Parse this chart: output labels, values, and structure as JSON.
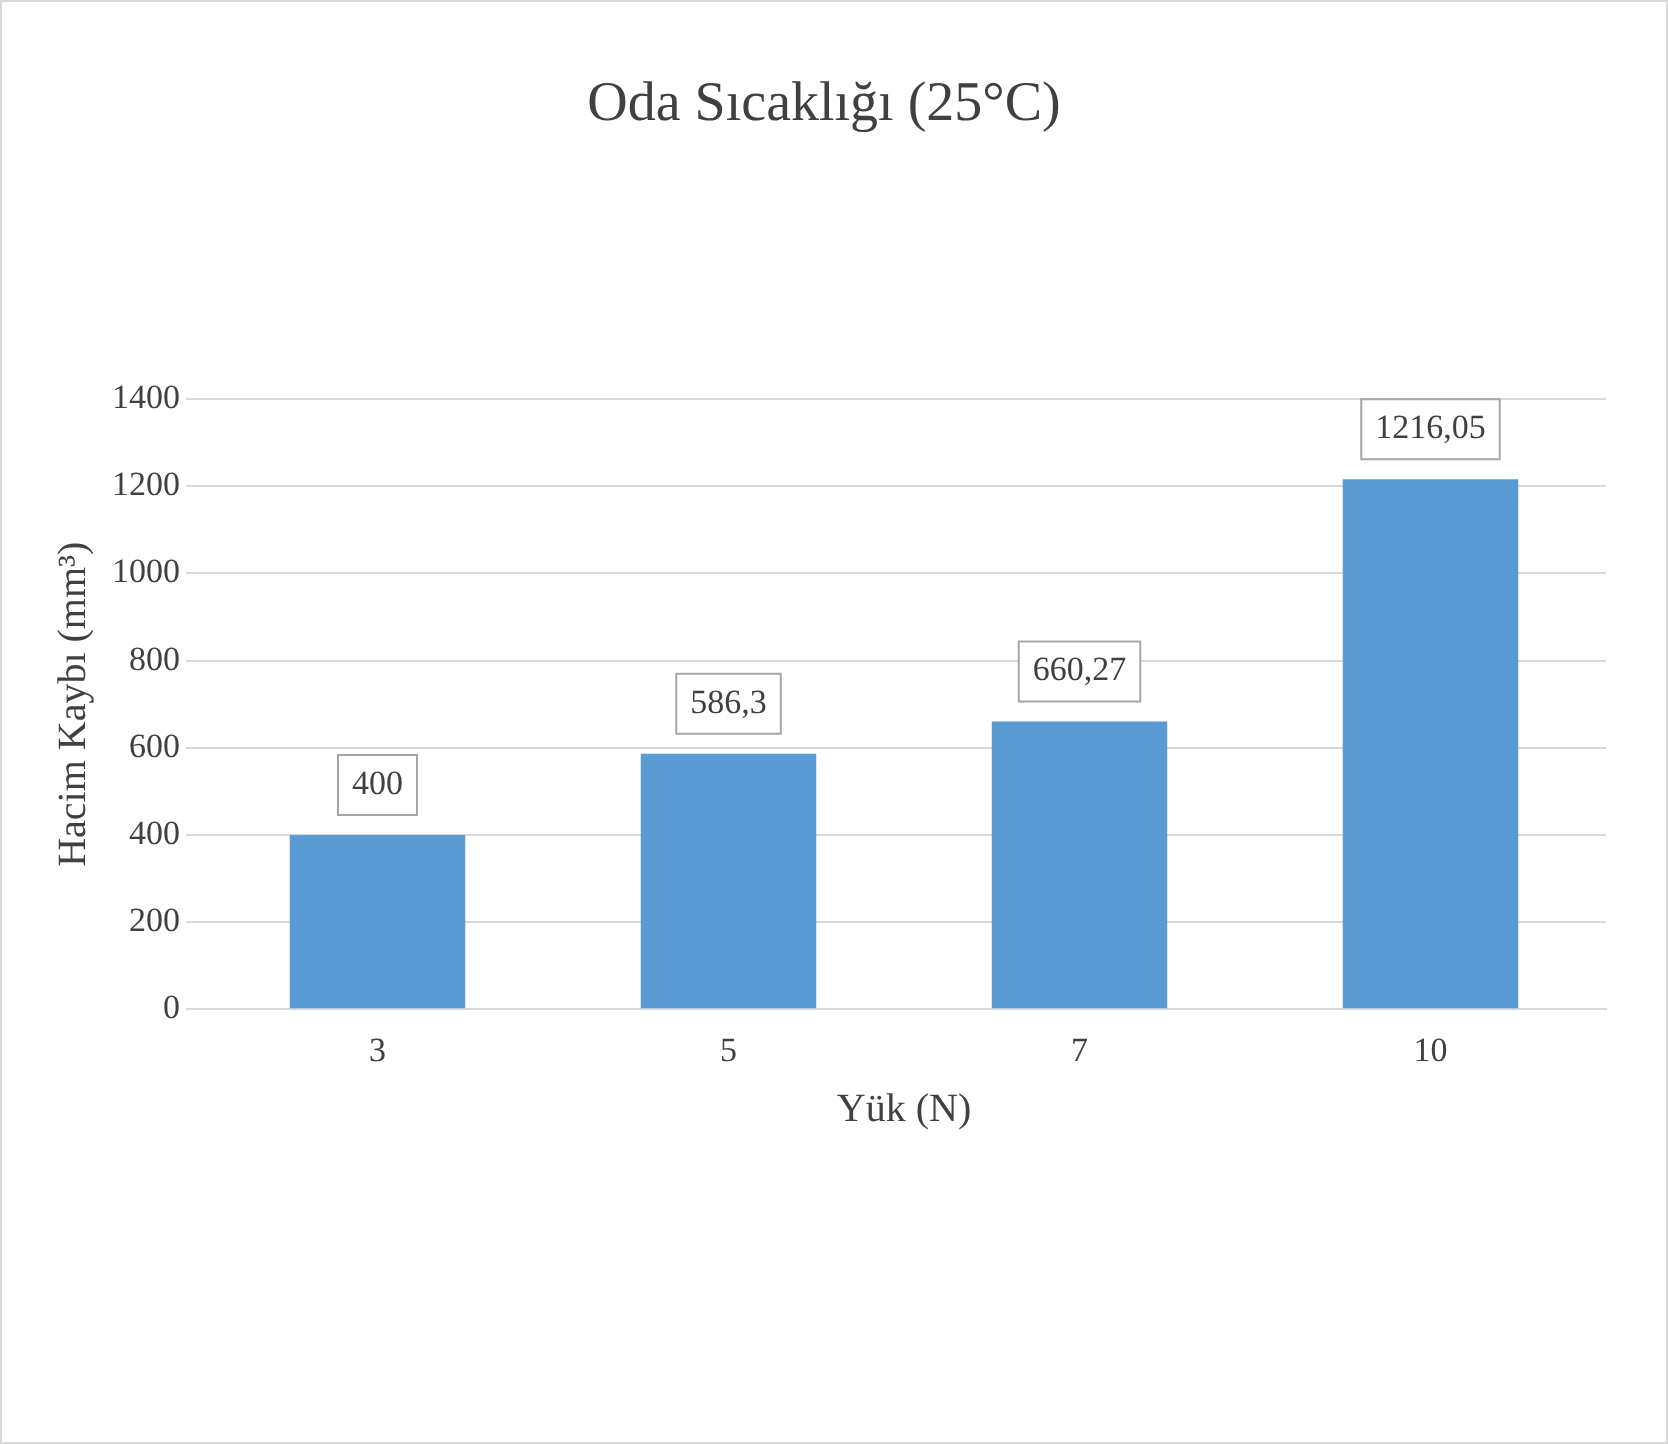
{
  "chart_data": {
    "type": "bar",
    "title": "Oda Sıcaklığı (25°C)",
    "xlabel": "Yük (N)",
    "ylabel": "Hacim Kaybı (mm³)",
    "categories": [
      "3",
      "5",
      "7",
      "10"
    ],
    "values": [
      400,
      586.3,
      660.27,
      1216.05
    ],
    "value_labels": [
      "400",
      "586,3",
      "660,27",
      "1216,05"
    ],
    "color": "#5b9bd5",
    "ylim": [
      0,
      1400
    ],
    "yticks": [
      0,
      200,
      400,
      600,
      800,
      1000,
      1200,
      1400
    ],
    "grid": "y"
  }
}
